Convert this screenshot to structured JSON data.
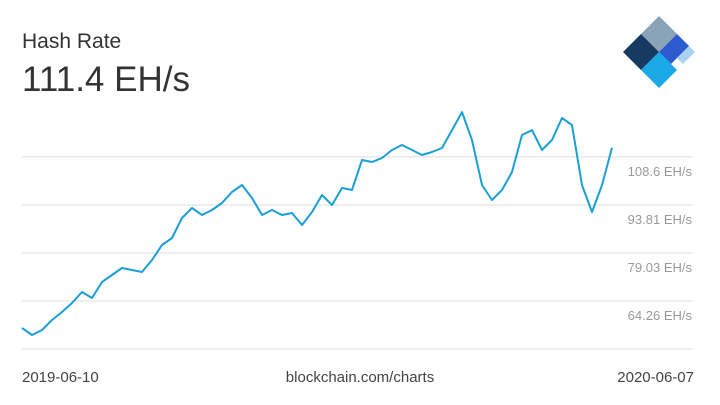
{
  "chart_data": {
    "type": "line",
    "title": "Hash Rate",
    "current_value": "111.4 EH/s",
    "x_labels": [
      "2019-06-10",
      "2020-06-07"
    ],
    "source": "blockchain.com/charts",
    "color": "#1a9fd6",
    "ylim": [
      49.49,
      123.35
    ],
    "yticks": [
      {
        "value": 108.6,
        "label": "108.6 EH/s"
      },
      {
        "value": 93.81,
        "label": "93.81 EH/s"
      },
      {
        "value": 79.03,
        "label": "79.03 EH/s"
      },
      {
        "value": 64.26,
        "label": "64.26 EH/s"
      }
    ],
    "grid": true,
    "values": [
      55.95,
      53.8,
      55.34,
      58.41,
      60.87,
      63.64,
      67.03,
      65.18,
      70.11,
      72.26,
      74.41,
      73.8,
      73.18,
      76.87,
      81.49,
      83.64,
      89.8,
      92.87,
      90.72,
      92.26,
      94.41,
      97.8,
      99.95,
      95.95,
      90.72,
      92.26,
      90.72,
      91.34,
      87.64,
      91.64,
      96.87,
      93.8,
      99.03,
      98.41,
      107.64,
      107.03,
      108.26,
      110.72,
      112.26,
      110.72,
      109.18,
      110.11,
      111.34,
      116.87,
      122.41,
      113.8,
      99.95,
      95.34,
      98.41,
      103.95,
      115.34,
      116.87,
      110.72,
      113.8,
      120.57,
      118.41,
      99.95,
      91.64,
      99.95,
      111.4
    ]
  }
}
